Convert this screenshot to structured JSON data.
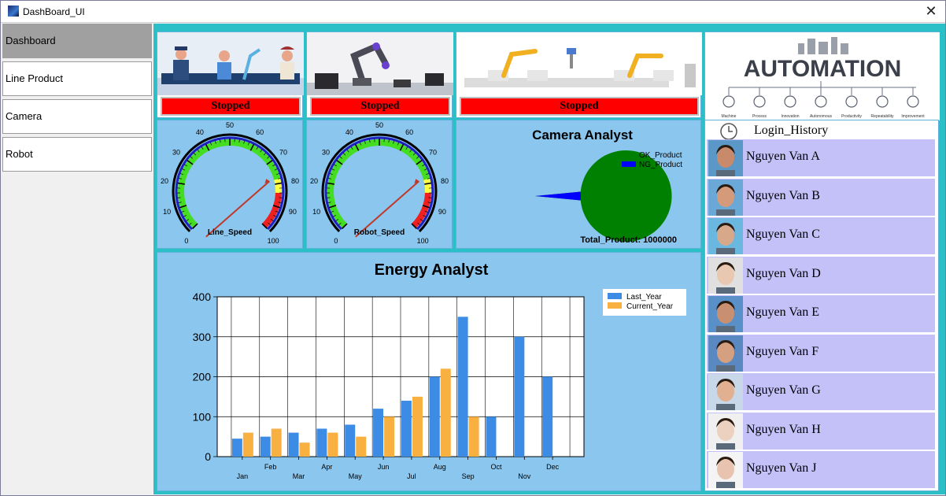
{
  "window": {
    "title": "DashBoard_UI",
    "close_glyph": "✕",
    "icon": "app-icon"
  },
  "sidebar": {
    "items": [
      {
        "label": "Dashboard",
        "active": true
      },
      {
        "label": "Line Product",
        "active": false
      },
      {
        "label": "Camera",
        "active": false
      },
      {
        "label": "Robot",
        "active": false
      }
    ]
  },
  "machines": [
    {
      "image": "workers-illustration",
      "status": "Stopped"
    },
    {
      "image": "robot-arm-illustration",
      "status": "Stopped"
    },
    {
      "image": "assembly-line-illustration",
      "status": "Stopped"
    }
  ],
  "automation": {
    "title": "AUTOMATION",
    "icons": [
      "Machine",
      "Process",
      "Innovation",
      "Autonomous",
      "Productivity",
      "Repeatability",
      "Improvement"
    ]
  },
  "gauges": [
    {
      "label": "Line_Speed",
      "min": 0,
      "max": 100,
      "value": 78,
      "ticks": [
        "0",
        "10",
        "20",
        "30",
        "40",
        "50",
        "60",
        "70",
        "80",
        "90",
        "100"
      ]
    },
    {
      "label": "Robot_Speed",
      "min": 0,
      "max": 100,
      "value": 78,
      "ticks": [
        "0",
        "10",
        "20",
        "30",
        "40",
        "50",
        "60",
        "70",
        "80",
        "90",
        "100"
      ]
    }
  ],
  "camera": {
    "title": "Camera Analyst",
    "legend": [
      {
        "name": "OK_Product",
        "color": "#008000"
      },
      {
        "name": "NG_Product",
        "color": "#0000ff"
      }
    ],
    "total_label": "Total_Product: 1000000",
    "ok_fraction": 0.97,
    "ng_fraction": 0.03
  },
  "login": {
    "title": "Login_History",
    "icon": "clock-icon",
    "users": [
      "Nguyen Van A",
      "Nguyen Van B",
      "Nguyen Van C",
      "Nguyen Van D",
      "Nguyen Van E",
      "Nguyen Van F",
      "Nguyen Van G",
      "Nguyen Van H",
      "Nguyen Van J"
    ]
  },
  "chart_data": {
    "type": "bar",
    "title": "Energy Analyst",
    "categories": [
      "Jan",
      "Feb",
      "Mar",
      "Apr",
      "May",
      "Jun",
      "Jul",
      "Aug",
      "Sep",
      "Oct",
      "Nov",
      "Dec"
    ],
    "series": [
      {
        "name": "Last_Year",
        "color": "#3c8ce6",
        "values": [
          45,
          50,
          60,
          70,
          80,
          120,
          140,
          200,
          350,
          100,
          300,
          200
        ]
      },
      {
        "name": "Current_Year",
        "color": "#f8b040",
        "values": [
          60,
          70,
          35,
          60,
          50,
          100,
          150,
          220,
          100,
          0,
          0,
          0
        ]
      }
    ],
    "ylim": [
      0,
      400
    ],
    "yticks": [
      "0",
      "100",
      "200",
      "300",
      "400"
    ],
    "xlabel": "",
    "ylabel": "",
    "grid": true,
    "legend_position": "top-right"
  }
}
